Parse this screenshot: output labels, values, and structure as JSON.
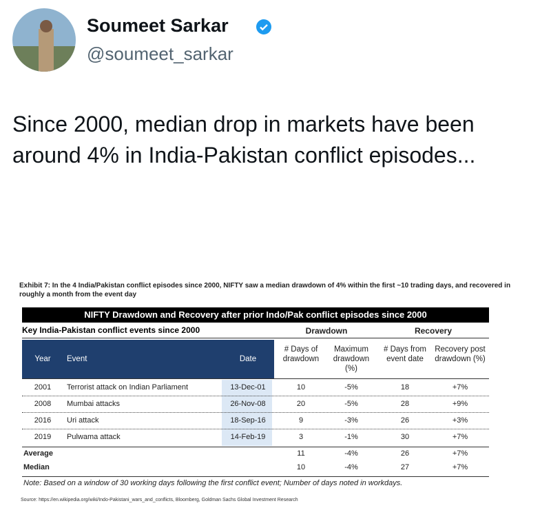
{
  "header": {
    "name": "Soumeet Sarkar",
    "handle": "@soumeet_sarkar"
  },
  "tweet": {
    "text": "Since 2000, median drop in markets have been around 4% in India-Pakistan conflict episodes..."
  },
  "exhibit": {
    "caption": "Exhibit 7: In the 4 India/Pakistan conflict episodes since 2000, NIFTY saw a median drawdown of 4% within the first ~10 trading days, and recovered in roughly a month from the event day",
    "title": "NIFTY Drawdown and Recovery after prior Indo/Pak conflict episodes since 2000",
    "subheader": "Key India-Pakistan conflict events since 2000",
    "groups": [
      "Drawdown",
      "Recovery"
    ],
    "columns": [
      "Year",
      "Event",
      "Date",
      "# Days of drawdown",
      "Maximum drawdown (%)",
      "# Days from event date",
      "Recovery post drawdown (%)"
    ],
    "rows": [
      [
        "2001",
        "Terrorist attack on Indian Parliament",
        "13-Dec-01",
        "10",
        "-5%",
        "18",
        "+7%"
      ],
      [
        "2008",
        "Mumbai attacks",
        "26-Nov-08",
        "20",
        "-5%",
        "28",
        "+9%"
      ],
      [
        "2016",
        "Uri attack",
        "18-Sep-16",
        "9",
        "-3%",
        "26",
        "+3%"
      ],
      [
        "2019",
        "Pulwama attack",
        "14-Feb-19",
        "3",
        "-1%",
        "30",
        "+7%"
      ]
    ],
    "summary": [
      [
        "Average",
        "11",
        "-4%",
        "26",
        "+7%"
      ],
      [
        "Median",
        "10",
        "-4%",
        "27",
        "+7%"
      ]
    ],
    "note": "Note: Based on a window of 30 working days following the first conflict event; Number of days noted in workdays.",
    "source": "Source: https://en.wikipedia.org/wiki/Indo-Pakistani_wars_and_conflicts, Bloomberg, Goldman Sachs Global Investment Research"
  }
}
